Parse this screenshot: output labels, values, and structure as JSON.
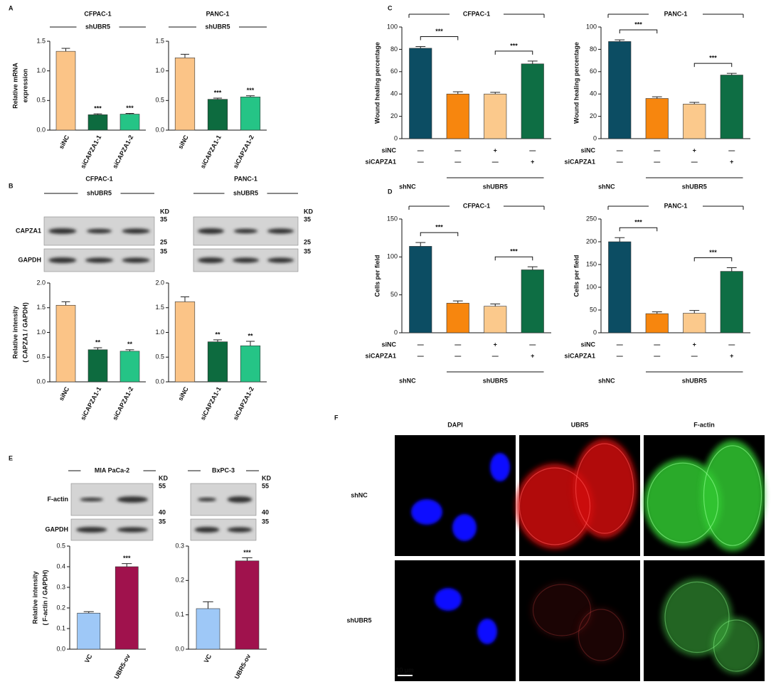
{
  "panel_letters": [
    "A",
    "B",
    "C",
    "D",
    "E",
    "F"
  ],
  "chart_data": [
    {
      "type": "bar",
      "title": "CFPAC-1",
      "subtitle": "shUBR5",
      "ylabel": [
        "Relative mRNA",
        "expression"
      ],
      "categories": [
        "siNC",
        "siCAPZA1-1",
        "siCAPZA1-2"
      ],
      "values": [
        1.33,
        0.26,
        0.27
      ],
      "errors": [
        0.05,
        0.015,
        0.012
      ],
      "colors": [
        "#fbc487",
        "#0d6b3f",
        "#25c486"
      ],
      "annotations": [
        null,
        "***",
        "***"
      ],
      "ylim": [
        0,
        1.5
      ],
      "yticks": [
        {
          "value": 0,
          "label": "0.0"
        },
        {
          "value": 0.5,
          "label": "0.5"
        },
        {
          "value": 1,
          "label": "1.0"
        },
        {
          "value": 1.5,
          "label": "1.5"
        }
      ]
    },
    {
      "type": "bar",
      "title": "PANC-1",
      "subtitle": "shUBR5",
      "categories": [
        "siNC",
        "siCAPZA1-1",
        "siCAPZA1-2"
      ],
      "values": [
        1.22,
        0.52,
        0.56
      ],
      "errors": [
        0.06,
        0.02,
        0.02
      ],
      "colors": [
        "#fbc487",
        "#0d6b3f",
        "#25c486"
      ],
      "annotations": [
        null,
        "***",
        "***"
      ],
      "ylim": [
        0,
        1.5
      ],
      "yticks": [
        {
          "value": 0,
          "label": "0.0"
        },
        {
          "value": 0.5,
          "label": "0.5"
        },
        {
          "value": 1,
          "label": "1.0"
        },
        {
          "value": 1.5,
          "label": "1.5"
        }
      ]
    },
    {
      "type": "bar",
      "ylabel": [
        "Relative  intensity",
        "( CAPZA1 / GAPDH)"
      ],
      "categories": [
        "siNC",
        "siCAPZA1-1",
        "siCAPZA1-2"
      ],
      "values": [
        1.55,
        0.65,
        0.62
      ],
      "errors": [
        0.07,
        0.04,
        0.03
      ],
      "colors": [
        "#fbc487",
        "#0d6b3f",
        "#25c486"
      ],
      "annotations": [
        null,
        "**",
        "**"
      ],
      "ylim": [
        0,
        2
      ],
      "yticks": [
        {
          "value": 0,
          "label": "0.0"
        },
        {
          "value": 0.5,
          "label": "0.5"
        },
        {
          "value": 1,
          "label": "1.0"
        },
        {
          "value": 1.5,
          "label": "1.5"
        },
        {
          "value": 2,
          "label": "2.0"
        }
      ]
    },
    {
      "type": "bar",
      "categories": [
        "siNC",
        "siCAPZA1-1",
        "siCAPZA1-2"
      ],
      "values": [
        1.62,
        0.81,
        0.73
      ],
      "errors": [
        0.1,
        0.04,
        0.09
      ],
      "colors": [
        "#fbc487",
        "#0d6b3f",
        "#25c486"
      ],
      "annotations": [
        null,
        "**",
        "**"
      ],
      "ylim": [
        0,
        2
      ],
      "yticks": [
        {
          "value": 0,
          "label": "0.0"
        },
        {
          "value": 0.5,
          "label": "0.5"
        },
        {
          "value": 1,
          "label": "1.0"
        },
        {
          "value": 1.5,
          "label": "1.5"
        },
        {
          "value": 2,
          "label": "2.0"
        }
      ]
    },
    {
      "type": "bar",
      "title": "CFPAC-1",
      "ylabel": [
        "Wound healing percentage"
      ],
      "values": [
        81,
        40,
        40,
        67
      ],
      "errors": [
        1.5,
        2,
        1.5,
        2.5
      ],
      "colors": [
        "#0c4d63",
        "#f7860e",
        "#fbc98c",
        "#0e6e44"
      ],
      "comparisons": [
        {
          "pair": [
            0,
            1
          ],
          "label": "***"
        },
        {
          "pair": [
            2,
            3
          ],
          "label": "***"
        }
      ],
      "conditions": [
        {
          "name": "siNC",
          "marks": [
            "—",
            "—",
            "+",
            "—"
          ]
        },
        {
          "name": "siCAPZA1",
          "marks": [
            "—",
            "—",
            "—",
            "+"
          ]
        }
      ],
      "groups": [
        {
          "label": "shNC",
          "span": [
            0,
            0
          ]
        },
        {
          "label": "shUBR5",
          "span": [
            1,
            3
          ]
        }
      ],
      "ylim": [
        0,
        100
      ],
      "yticks": [
        0,
        20,
        40,
        60,
        80,
        100
      ]
    },
    {
      "type": "bar",
      "title": "PANC-1",
      "ylabel": [
        "Wound healing percentage"
      ],
      "values": [
        87,
        36,
        31,
        57
      ],
      "errors": [
        1.5,
        1.5,
        1.5,
        1.5
      ],
      "colors": [
        "#0c4d63",
        "#f7860e",
        "#fbc98c",
        "#0e6e44"
      ],
      "comparisons": [
        {
          "pair": [
            0,
            1
          ],
          "label": "***"
        },
        {
          "pair": [
            2,
            3
          ],
          "label": "***"
        }
      ],
      "conditions": [
        {
          "name": "siNC",
          "marks": [
            "—",
            "—",
            "+",
            "—"
          ]
        },
        {
          "name": "siCAPZA1",
          "marks": [
            "—",
            "—",
            "—",
            "+"
          ]
        }
      ],
      "groups": [
        {
          "label": "shNC",
          "span": [
            0,
            0
          ]
        },
        {
          "label": "shUBR5",
          "span": [
            1,
            3
          ]
        }
      ],
      "ylim": [
        0,
        100
      ],
      "yticks": [
        0,
        20,
        40,
        60,
        80,
        100
      ]
    },
    {
      "type": "bar",
      "title": "CFPAC-1",
      "ylabel": [
        "Cells per field"
      ],
      "values": [
        114,
        39,
        35,
        83
      ],
      "errors": [
        5,
        3,
        3,
        4
      ],
      "colors": [
        "#0c4d63",
        "#f7860e",
        "#fbc98c",
        "#0e6e44"
      ],
      "comparisons": [
        {
          "pair": [
            0,
            1
          ],
          "label": "***"
        },
        {
          "pair": [
            2,
            3
          ],
          "label": "***"
        }
      ],
      "conditions": [
        {
          "name": "siNC",
          "marks": [
            "—",
            "—",
            "+",
            "—"
          ]
        },
        {
          "name": "siCAPZA1",
          "marks": [
            "—",
            "—",
            "—",
            "+"
          ]
        }
      ],
      "groups": [
        {
          "label": "shNC",
          "span": [
            0,
            0
          ]
        },
        {
          "label": "shUBR5",
          "span": [
            1,
            3
          ]
        }
      ],
      "ylim": [
        0,
        150
      ],
      "yticks": [
        0,
        50,
        100,
        150
      ]
    },
    {
      "type": "bar",
      "title": "PANC-1",
      "ylabel": [
        "Cells per field"
      ],
      "values": [
        200,
        42,
        43,
        135
      ],
      "errors": [
        9,
        4,
        6,
        8
      ],
      "colors": [
        "#0c4d63",
        "#f7860e",
        "#fbc98c",
        "#0e6e44"
      ],
      "comparisons": [
        {
          "pair": [
            0,
            1
          ],
          "label": "***"
        },
        {
          "pair": [
            2,
            3
          ],
          "label": "***"
        }
      ],
      "conditions": [
        {
          "name": "siNC",
          "marks": [
            "—",
            "—",
            "+",
            "—"
          ]
        },
        {
          "name": "siCAPZA1",
          "marks": [
            "—",
            "—",
            "—",
            "+"
          ]
        }
      ],
      "groups": [
        {
          "label": "shNC",
          "span": [
            0,
            0
          ]
        },
        {
          "label": "shUBR5",
          "span": [
            1,
            3
          ]
        }
      ],
      "ylim": [
        0,
        250
      ],
      "yticks": [
        0,
        50,
        100,
        150,
        200,
        250
      ]
    },
    {
      "type": "bar",
      "ylabel": [
        "Relative  intensity",
        "( F-actin / GAPDH)"
      ],
      "categories": [
        "VC",
        "UBR5-ov"
      ],
      "values": [
        0.175,
        0.4
      ],
      "errors": [
        0.007,
        0.015
      ],
      "colors": [
        "#9ec8f7",
        "#a0124d"
      ],
      "annotations": [
        null,
        "***"
      ],
      "ylim": [
        0,
        0.5
      ],
      "yticks": [
        {
          "value": 0,
          "label": "0.0"
        },
        {
          "value": 0.1,
          "label": "0.1"
        },
        {
          "value": 0.2,
          "label": "0.2"
        },
        {
          "value": 0.3,
          "label": "0.3"
        },
        {
          "value": 0.4,
          "label": "0.4"
        },
        {
          "value": 0.5,
          "label": "0.5"
        }
      ]
    },
    {
      "type": "bar",
      "categories": [
        "VC",
        "UBR5-ov"
      ],
      "values": [
        0.118,
        0.257
      ],
      "errors": [
        0.02,
        0.009
      ],
      "colors": [
        "#9ec8f7",
        "#a0124d"
      ],
      "annotations": [
        null,
        "***"
      ],
      "ylim": [
        0,
        0.3
      ],
      "yticks": [
        {
          "value": 0,
          "label": "0.0"
        },
        {
          "value": 0.1,
          "label": "0.1"
        },
        {
          "value": 0.2,
          "label": "0.2"
        },
        {
          "value": 0.3,
          "label": "0.3"
        }
      ]
    }
  ],
  "blots": [
    {
      "title": "CFPAC-1",
      "subtitle": "shUBR5",
      "unit": "KD",
      "rows": [
        {
          "protein": "CAPZA1",
          "markers": [
            "35",
            "25"
          ]
        },
        {
          "protein": "GAPDH",
          "markers": [
            "35"
          ]
        }
      ]
    },
    {
      "title": "PANC-1",
      "subtitle": "shUBR5",
      "unit": "KD",
      "rows": [
        {
          "markers": [
            "35",
            "25"
          ]
        },
        {
          "markers": [
            "35"
          ]
        }
      ]
    },
    {
      "title": "MIA PaCa-2",
      "unit": "KD",
      "rows": [
        {
          "protein": "F-actin",
          "markers": [
            "55",
            "40"
          ]
        },
        {
          "protein": "GAPDH",
          "markers": [
            "35"
          ]
        }
      ]
    },
    {
      "title": "BxPC-3",
      "unit": "KD",
      "rows": [
        {
          "markers": [
            "55",
            "40"
          ]
        },
        {
          "markers": [
            "35"
          ]
        }
      ]
    }
  ],
  "microscopy": {
    "columns": [
      "DAPI",
      "UBR5",
      "F-actin"
    ],
    "rows": [
      "shNC",
      "shUBR5"
    ],
    "scale_bar": "10 μm"
  }
}
